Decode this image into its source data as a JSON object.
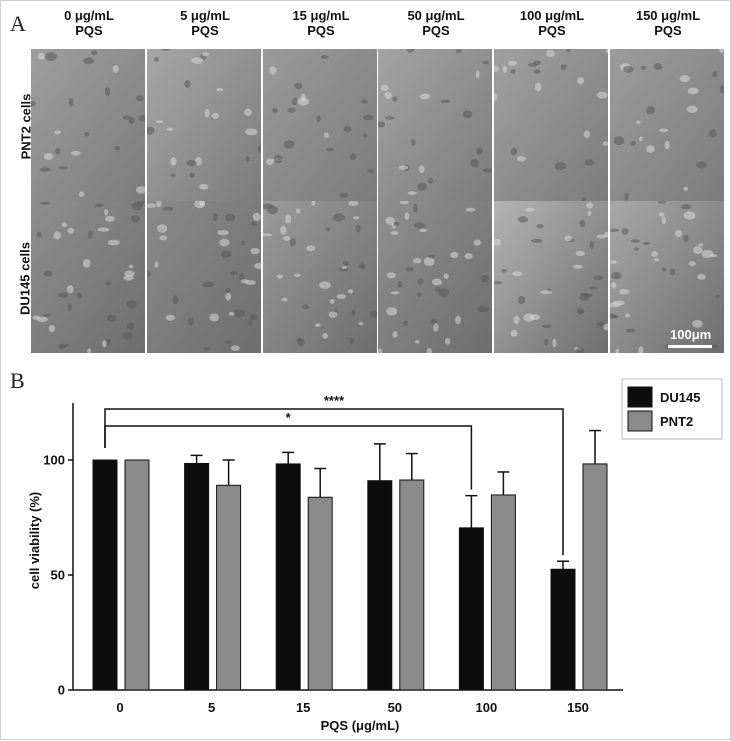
{
  "panel_a": {
    "letter": "A",
    "concentrations": [
      {
        "dose": "0 μg/mL",
        "agent": "PQS"
      },
      {
        "dose": "5 μg/mL",
        "agent": "PQS"
      },
      {
        "dose": "15 μg/mL",
        "agent": "PQS"
      },
      {
        "dose": "50 μg/mL",
        "agent": "PQS"
      },
      {
        "dose": "100 μg/mL",
        "agent": "PQS"
      },
      {
        "dose": "150 μg/mL",
        "agent": "PQS"
      }
    ],
    "rows": [
      {
        "label": "PNT2 cells"
      },
      {
        "label": "DU145 cells"
      }
    ],
    "scale_bar": "100μm"
  },
  "panel_b": {
    "letter": "B"
  },
  "chart_data": {
    "type": "bar",
    "title": "",
    "xlabel": "PQS (μg/mL)",
    "ylabel": "cell viability (%)",
    "categories": [
      "0",
      "5",
      "15",
      "50",
      "100",
      "150"
    ],
    "ylim": [
      0,
      130
    ],
    "yticks": [
      0,
      50,
      100
    ],
    "series": [
      {
        "name": "DU145",
        "color": "#0d0d0d",
        "values": [
          100,
          98.5,
          98.3,
          91,
          70.5,
          52.5
        ],
        "errors": [
          0,
          3.5,
          5,
          16,
          14,
          3.5
        ]
      },
      {
        "name": "PNT2",
        "color": "#8a8a8a",
        "values": [
          100,
          89,
          83.8,
          91.3,
          84.8,
          98.3
        ],
        "errors": [
          0,
          11,
          12.5,
          11.5,
          10,
          14.5
        ]
      }
    ],
    "legend": "top-right",
    "significance": [
      {
        "label": "*",
        "from": "0",
        "to": "100"
      },
      {
        "label": "****",
        "from": "0",
        "to": "150"
      }
    ]
  }
}
